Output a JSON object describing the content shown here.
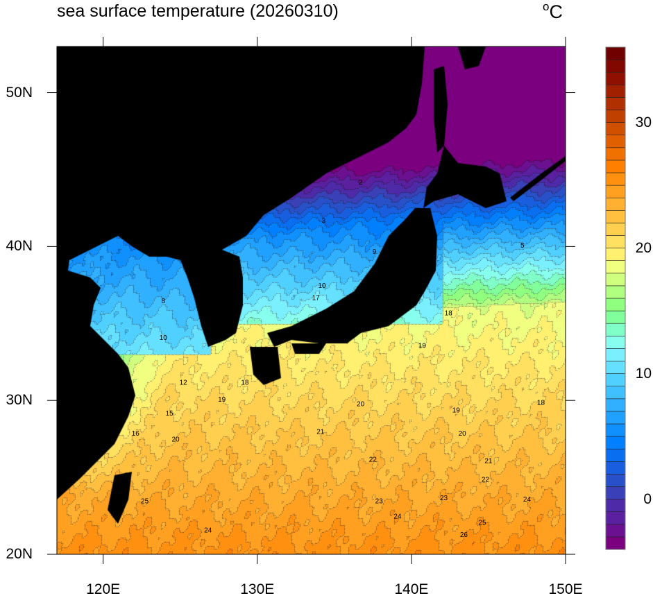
{
  "title": "sea surface temperature (20260310)",
  "unit": "°C",
  "map": {
    "lon_range": [
      117,
      150
    ],
    "lat_range": [
      20,
      53
    ],
    "lon_ticks": [
      {
        "v": 120,
        "label": "120E"
      },
      {
        "v": 130,
        "label": "130E"
      },
      {
        "v": 140,
        "label": "140E"
      },
      {
        "v": 150,
        "label": "150E"
      }
    ],
    "lat_ticks": [
      {
        "v": 20,
        "label": "20N"
      },
      {
        "v": 30,
        "label": "30N"
      },
      {
        "v": 40,
        "label": "40N"
      },
      {
        "v": 50,
        "label": "50N"
      }
    ],
    "land_color": "#000000",
    "contour_interval": 1,
    "contour_labels": [
      {
        "t": "26",
        "lon": 143.4,
        "lat": 21.3
      },
      {
        "t": "25",
        "lon": 144.6,
        "lat": 22.1
      },
      {
        "t": "24",
        "lon": 139.1,
        "lat": 22.5
      },
      {
        "t": "24",
        "lon": 147.5,
        "lat": 23.6
      },
      {
        "t": "23",
        "lon": 142.1,
        "lat": 23.7
      },
      {
        "t": "22",
        "lon": 144.8,
        "lat": 24.9
      },
      {
        "t": "21",
        "lon": 145.0,
        "lat": 26.1
      },
      {
        "t": "20",
        "lon": 143.3,
        "lat": 27.9
      },
      {
        "t": "19",
        "lon": 142.9,
        "lat": 29.4
      },
      {
        "t": "18",
        "lon": 148.4,
        "lat": 29.9
      },
      {
        "t": "19",
        "lon": 140.7,
        "lat": 33.6
      },
      {
        "t": "18",
        "lon": 142.4,
        "lat": 35.7
      },
      {
        "t": "20",
        "lon": 136.7,
        "lat": 29.8
      },
      {
        "t": "21",
        "lon": 134.1,
        "lat": 28.0
      },
      {
        "t": "22",
        "lon": 137.5,
        "lat": 26.2
      },
      {
        "t": "23",
        "lon": 137.9,
        "lat": 23.5
      },
      {
        "t": "24",
        "lon": 126.8,
        "lat": 21.6
      },
      {
        "t": "25",
        "lon": 122.7,
        "lat": 23.5
      },
      {
        "t": "20",
        "lon": 124.7,
        "lat": 27.5
      },
      {
        "t": "16",
        "lon": 122.1,
        "lat": 27.9
      },
      {
        "t": "15",
        "lon": 124.3,
        "lat": 29.2
      },
      {
        "t": "12",
        "lon": 125.2,
        "lat": 31.2
      },
      {
        "t": "10",
        "lon": 123.9,
        "lat": 34.1
      },
      {
        "t": "8",
        "lon": 123.9,
        "lat": 36.5
      },
      {
        "t": "10",
        "lon": 134.2,
        "lat": 37.5
      },
      {
        "t": "9",
        "lon": 137.6,
        "lat": 39.7
      },
      {
        "t": "3",
        "lon": 134.3,
        "lat": 41.7
      },
      {
        "t": "2",
        "lon": 136.7,
        "lat": 44.2
      },
      {
        "t": "5",
        "lon": 147.2,
        "lat": 40.1
      },
      {
        "t": "17",
        "lon": 133.8,
        "lat": 36.7
      },
      {
        "t": "18",
        "lon": 129.2,
        "lat": 31.2
      },
      {
        "t": "19",
        "lon": 127.7,
        "lat": 30.1
      }
    ]
  },
  "colorbar": {
    "min": -4,
    "max": 36,
    "step": 1,
    "ticks": [
      {
        "v": 0,
        "label": "0"
      },
      {
        "v": 10,
        "label": "10"
      },
      {
        "v": 20,
        "label": "20"
      },
      {
        "v": 30,
        "label": "30"
      }
    ],
    "colors": [
      "#7a0080",
      "#6a1090",
      "#5a20a0",
      "#4e2aa8",
      "#3a40b8",
      "#2850c8",
      "#1a5ee0",
      "#0a6ef0",
      "#0080ff",
      "#1090ff",
      "#20a0ff",
      "#30b0ff",
      "#40c0ff",
      "#50d0ff",
      "#66e0ff",
      "#7af0ff",
      "#88ffee",
      "#80ffc8",
      "#80ff9a",
      "#90ff80",
      "#b0ff80",
      "#d0ff80",
      "#f0ff80",
      "#fff070",
      "#ffe060",
      "#ffd050",
      "#ffc040",
      "#ffb030",
      "#ffa020",
      "#ff9010",
      "#ff8000",
      "#f07000",
      "#e06000",
      "#d05000",
      "#c04000",
      "#b03000",
      "#a02000",
      "#901000",
      "#800800",
      "#700000"
    ]
  }
}
